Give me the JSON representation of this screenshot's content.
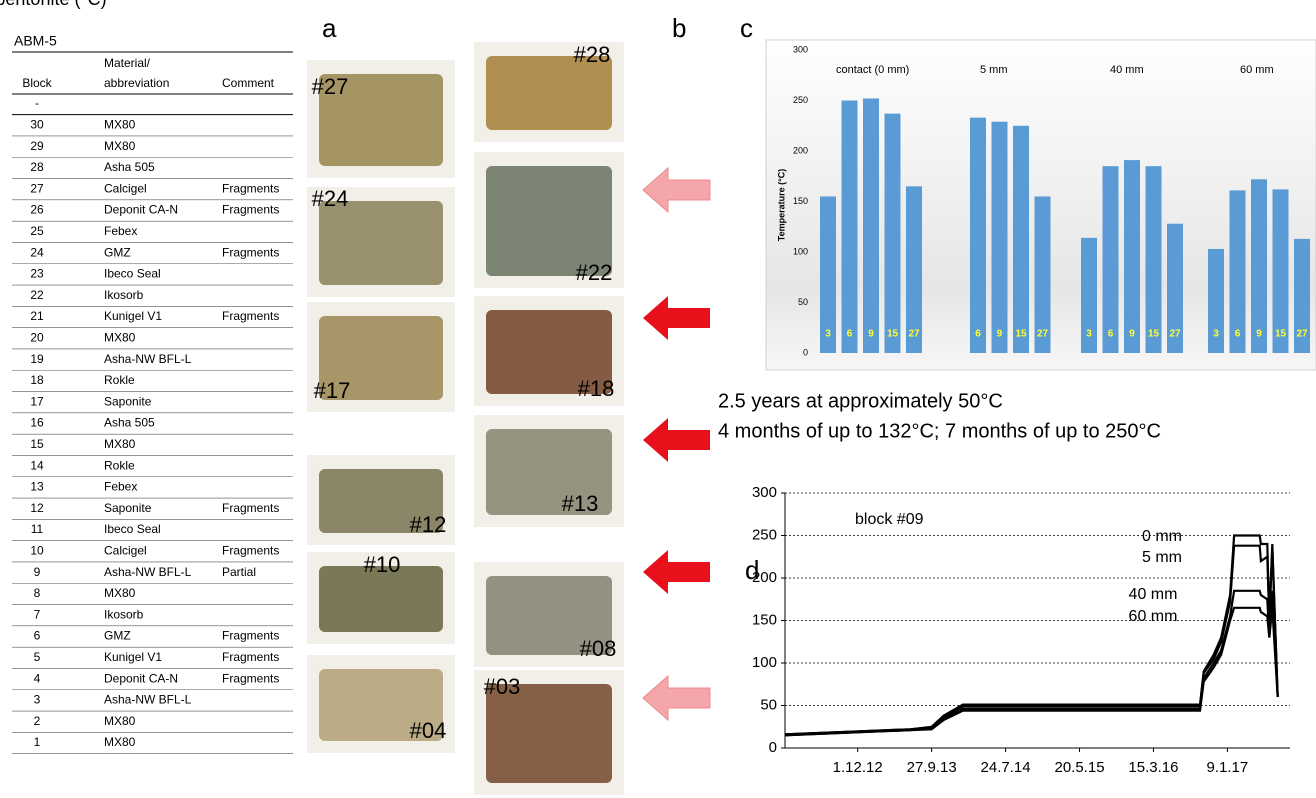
{
  "panel_labels": [
    "a",
    "b",
    "c",
    "d"
  ],
  "table": {
    "title": "ABM-5",
    "columns": [
      "Block",
      "Material/\nabbreviation",
      "Comment"
    ],
    "rows": [
      {
        "block": "-"
      },
      {
        "block": "30",
        "material": "MX80"
      },
      {
        "block": "29",
        "material": "MX80"
      },
      {
        "block": "28",
        "material": "Asha 505"
      },
      {
        "block": "27",
        "material": "Calcigel",
        "comment": "Fragments"
      },
      {
        "block": "26",
        "material": "Deponit CA-N",
        "comment": "Fragments"
      },
      {
        "block": "25",
        "material": "Febex"
      },
      {
        "block": "24",
        "material": "GMZ",
        "comment": "Fragments"
      },
      {
        "block": "23",
        "material": "Ibeco Seal"
      },
      {
        "block": "22",
        "material": "Ikosorb"
      },
      {
        "block": "21",
        "material": "Kunigel V1",
        "comment": "Fragments"
      },
      {
        "block": "20",
        "material": "MX80"
      },
      {
        "block": "19",
        "material": "Asha-NW BFL-L"
      },
      {
        "block": "18",
        "material": "Rokle"
      },
      {
        "block": "17",
        "material": "Saponite"
      },
      {
        "block": "16",
        "material": "Asha 505"
      },
      {
        "block": "15",
        "material": "MX80"
      },
      {
        "block": "14",
        "material": "Rokle"
      },
      {
        "block": "13",
        "material": "Febex"
      },
      {
        "block": "12",
        "material": "Saponite",
        "comment": "Fragments"
      },
      {
        "block": "11",
        "material": "Ibeco Seal"
      },
      {
        "block": "10",
        "material": "Calcigel",
        "comment": "Fragments"
      },
      {
        "block": "9",
        "material": "Asha-NW BFL-L",
        "comment": "Partial"
      },
      {
        "block": "8",
        "material": "MX80"
      },
      {
        "block": "7",
        "material": "Ikosorb"
      },
      {
        "block": "6",
        "material": "GMZ",
        "comment": "Fragments"
      },
      {
        "block": "5",
        "material": "Kunigel V1",
        "comment": "Fragments"
      },
      {
        "block": "4",
        "material": "Deponit CA-N",
        "comment": "Fragments"
      },
      {
        "block": "3",
        "material": "Asha-NW BFL-L"
      },
      {
        "block": "2",
        "material": "MX80"
      },
      {
        "block": "1",
        "material": "MX80"
      }
    ]
  },
  "photos": {
    "left": [
      "#27",
      "#24",
      "#17",
      "#12",
      "#10",
      "#04"
    ],
    "right": [
      "#28",
      "#22",
      "#18",
      "#13",
      "#08",
      "#03"
    ]
  },
  "captions": [
    "2.5 years at approximately 50°C",
    "4 months of up to 132°C; 7 months of up to 250°C"
  ],
  "chart_data": [
    {
      "type": "bar",
      "ylabel": "Temperature (°C)",
      "ylim": [
        0,
        300
      ],
      "yticks": [
        0,
        50,
        100,
        150,
        200,
        250,
        300
      ],
      "color": "#5b9bd5",
      "groups": [
        {
          "name": "contact (0 mm)",
          "blocks": [
            3,
            6,
            9,
            15,
            27
          ],
          "values": [
            155,
            250,
            252,
            237,
            165
          ]
        },
        {
          "name": "5 mm",
          "blocks": [
            6,
            9,
            15,
            27
          ],
          "values": [
            233,
            229,
            225,
            155
          ]
        },
        {
          "name": "40 mm",
          "blocks": [
            3,
            6,
            9,
            15,
            27
          ],
          "values": [
            114,
            185,
            191,
            185,
            128
          ]
        },
        {
          "name": "60 mm",
          "blocks": [
            3,
            6,
            9,
            15,
            27
          ],
          "values": [
            103,
            161,
            172,
            162,
            113
          ]
        }
      ]
    },
    {
      "type": "line",
      "annotation": "block #09",
      "ylabel": "temperature bentonite (°C)",
      "xlim": [
        "2012-02-10",
        "2017-09-20"
      ],
      "xticks": [
        {
          "value": "2012-12-01",
          "label": "1.12.12"
        },
        {
          "value": "2013-09-27",
          "label": "27.9.13"
        },
        {
          "value": "2014-07-24",
          "label": "24.7.14"
        },
        {
          "value": "2015-05-20",
          "label": "20.5.15"
        },
        {
          "value": "2016-03-15",
          "label": "15.3.16"
        },
        {
          "value": "2017-01-09",
          "label": "9.1.17"
        }
      ],
      "ylim": [
        0,
        300
      ],
      "yticks": [
        0,
        50,
        100,
        150,
        200,
        250,
        300
      ],
      "grid": true,
      "x": [
        "2012-02-10",
        "2013-07-01",
        "2013-09-27",
        "2013-11-15",
        "2014-02-01",
        "2016-09-20",
        "2016-10-05",
        "2016-11-15",
        "2016-12-15",
        "2017-01-20",
        "2017-02-05",
        "2017-05-20",
        "2017-05-25",
        "2017-06-20",
        "2017-06-28",
        "2017-07-10",
        "2017-08-01"
      ],
      "series": [
        {
          "name": "0 mm",
          "color": "#000000",
          "values": [
            16,
            22,
            25,
            38,
            51,
            51,
            90,
            110,
            130,
            180,
            250,
            250,
            240,
            240,
            150,
            240,
            60
          ]
        },
        {
          "name": "5 mm",
          "color": "#000000",
          "values": [
            16,
            22,
            24,
            36,
            49,
            49,
            88,
            105,
            125,
            172,
            238,
            238,
            220,
            225,
            150,
            235,
            60
          ]
        },
        {
          "name": "40 mm",
          "color": "#000000",
          "values": [
            15,
            21,
            23,
            34,
            46,
            46,
            82,
            100,
            115,
            155,
            185,
            185,
            180,
            175,
            130,
            185,
            60
          ]
        },
        {
          "name": "60 mm",
          "color": "#000000",
          "values": [
            15,
            21,
            22,
            33,
            44,
            44,
            78,
            95,
            110,
            150,
            165,
            165,
            160,
            155,
            130,
            165,
            60
          ]
        }
      ]
    }
  ]
}
